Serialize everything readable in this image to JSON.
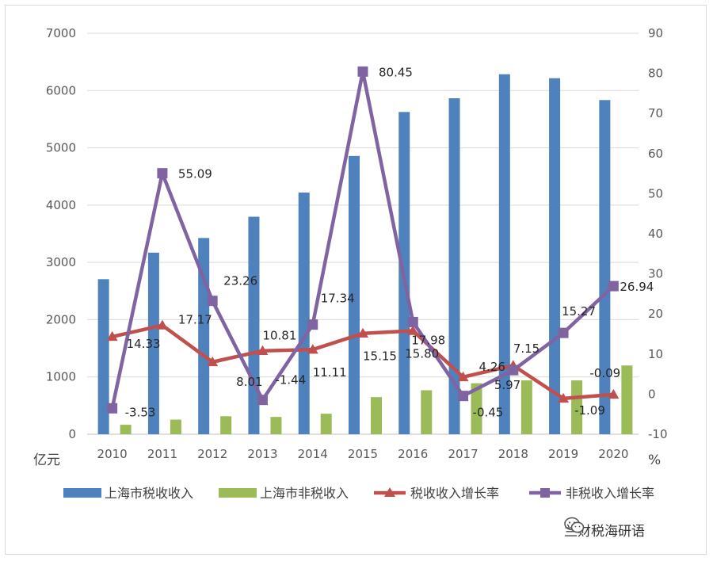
{
  "chart_data": {
    "type": "bar",
    "categories": [
      "2010",
      "2011",
      "2012",
      "2013",
      "2014",
      "2015",
      "2016",
      "2017",
      "2018",
      "2019",
      "2020"
    ],
    "series": [
      {
        "name": "上海市税收收入",
        "kind": "bar",
        "axis": "left",
        "color": "#4f81bd",
        "values": [
          2707,
          3170,
          3426,
          3797,
          4219,
          4858,
          5626,
          5866,
          6285,
          6216,
          5834
        ]
      },
      {
        "name": "上海市非税收入",
        "kind": "bar",
        "axis": "left",
        "color": "#9bbb59",
        "values": [
          165,
          255,
          314,
          302,
          358,
          648,
          768,
          890,
          940,
          940,
          1200
        ]
      },
      {
        "name": "税收收入增长率",
        "kind": "line",
        "axis": "right",
        "color": "#c0504d",
        "marker": "triangle",
        "values": [
          14.33,
          17.17,
          8.01,
          10.81,
          11.11,
          15.15,
          15.8,
          4.26,
          7.15,
          -1.09,
          -0.09
        ],
        "labels": [
          "14.33",
          "17.17",
          "8.01",
          "10.81",
          "11.11",
          "15.15",
          "15.80",
          "4.26",
          "7.15",
          "-1.09",
          "-0.09"
        ]
      },
      {
        "name": "非税收入增长率",
        "kind": "line",
        "axis": "right",
        "color": "#8064a2",
        "marker": "square",
        "values": [
          -3.53,
          55.09,
          23.26,
          -1.44,
          17.34,
          80.45,
          17.98,
          -0.45,
          5.97,
          15.27,
          26.94
        ],
        "labels": [
          "-3.53",
          "55.09",
          "23.26",
          "-1.44",
          "17.34",
          "80.45",
          "17.98",
          "-0.45",
          "5.97",
          "15.27",
          "26.94"
        ]
      }
    ],
    "y_left": {
      "min": 0,
      "max": 7000,
      "step": 1000,
      "unit": "亿元"
    },
    "y_right": {
      "min": -10,
      "max": 90,
      "step": 10,
      "unit": "%"
    },
    "grid": "horizontal",
    "legend_position": "bottom"
  },
  "watermark": {
    "text": "兰财税海研语",
    "icon": "wechat-icon"
  }
}
